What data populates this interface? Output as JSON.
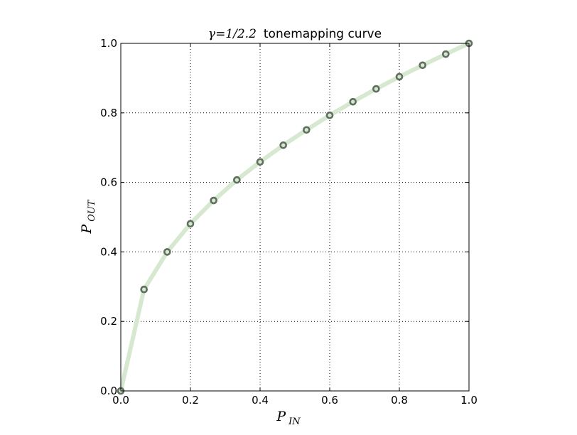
{
  "chart_data": {
    "type": "line",
    "title_math": "γ=1/2.2",
    "title_text": "tonemapping curve",
    "xlabel": "P",
    "xlabel_sub": "IN",
    "ylabel": "P",
    "ylabel_sub": "OUT",
    "xlim": [
      0,
      1
    ],
    "ylim": [
      0,
      1
    ],
    "grid": true,
    "x_ticks": [
      "0.0",
      "0.2",
      "0.4",
      "0.6",
      "0.8",
      "1.0"
    ],
    "y_ticks": [
      "0.0",
      "0.2",
      "0.4",
      "0.6",
      "0.8",
      "1.0"
    ],
    "series": [
      {
        "x": [
          0.0,
          0.0667,
          0.1333,
          0.2,
          0.2667,
          0.3333,
          0.4,
          0.4667,
          0.5333,
          0.6,
          0.6667,
          0.7333,
          0.8,
          0.8667,
          0.9333,
          1.0
        ],
        "y": [
          0.0,
          0.292,
          0.4,
          0.481,
          0.548,
          0.607,
          0.659,
          0.707,
          0.751,
          0.793,
          0.832,
          0.869,
          0.904,
          0.937,
          0.969,
          1.0
        ],
        "line_color": "#d6e9d0",
        "marker_color": "#5f6e5f"
      }
    ]
  }
}
